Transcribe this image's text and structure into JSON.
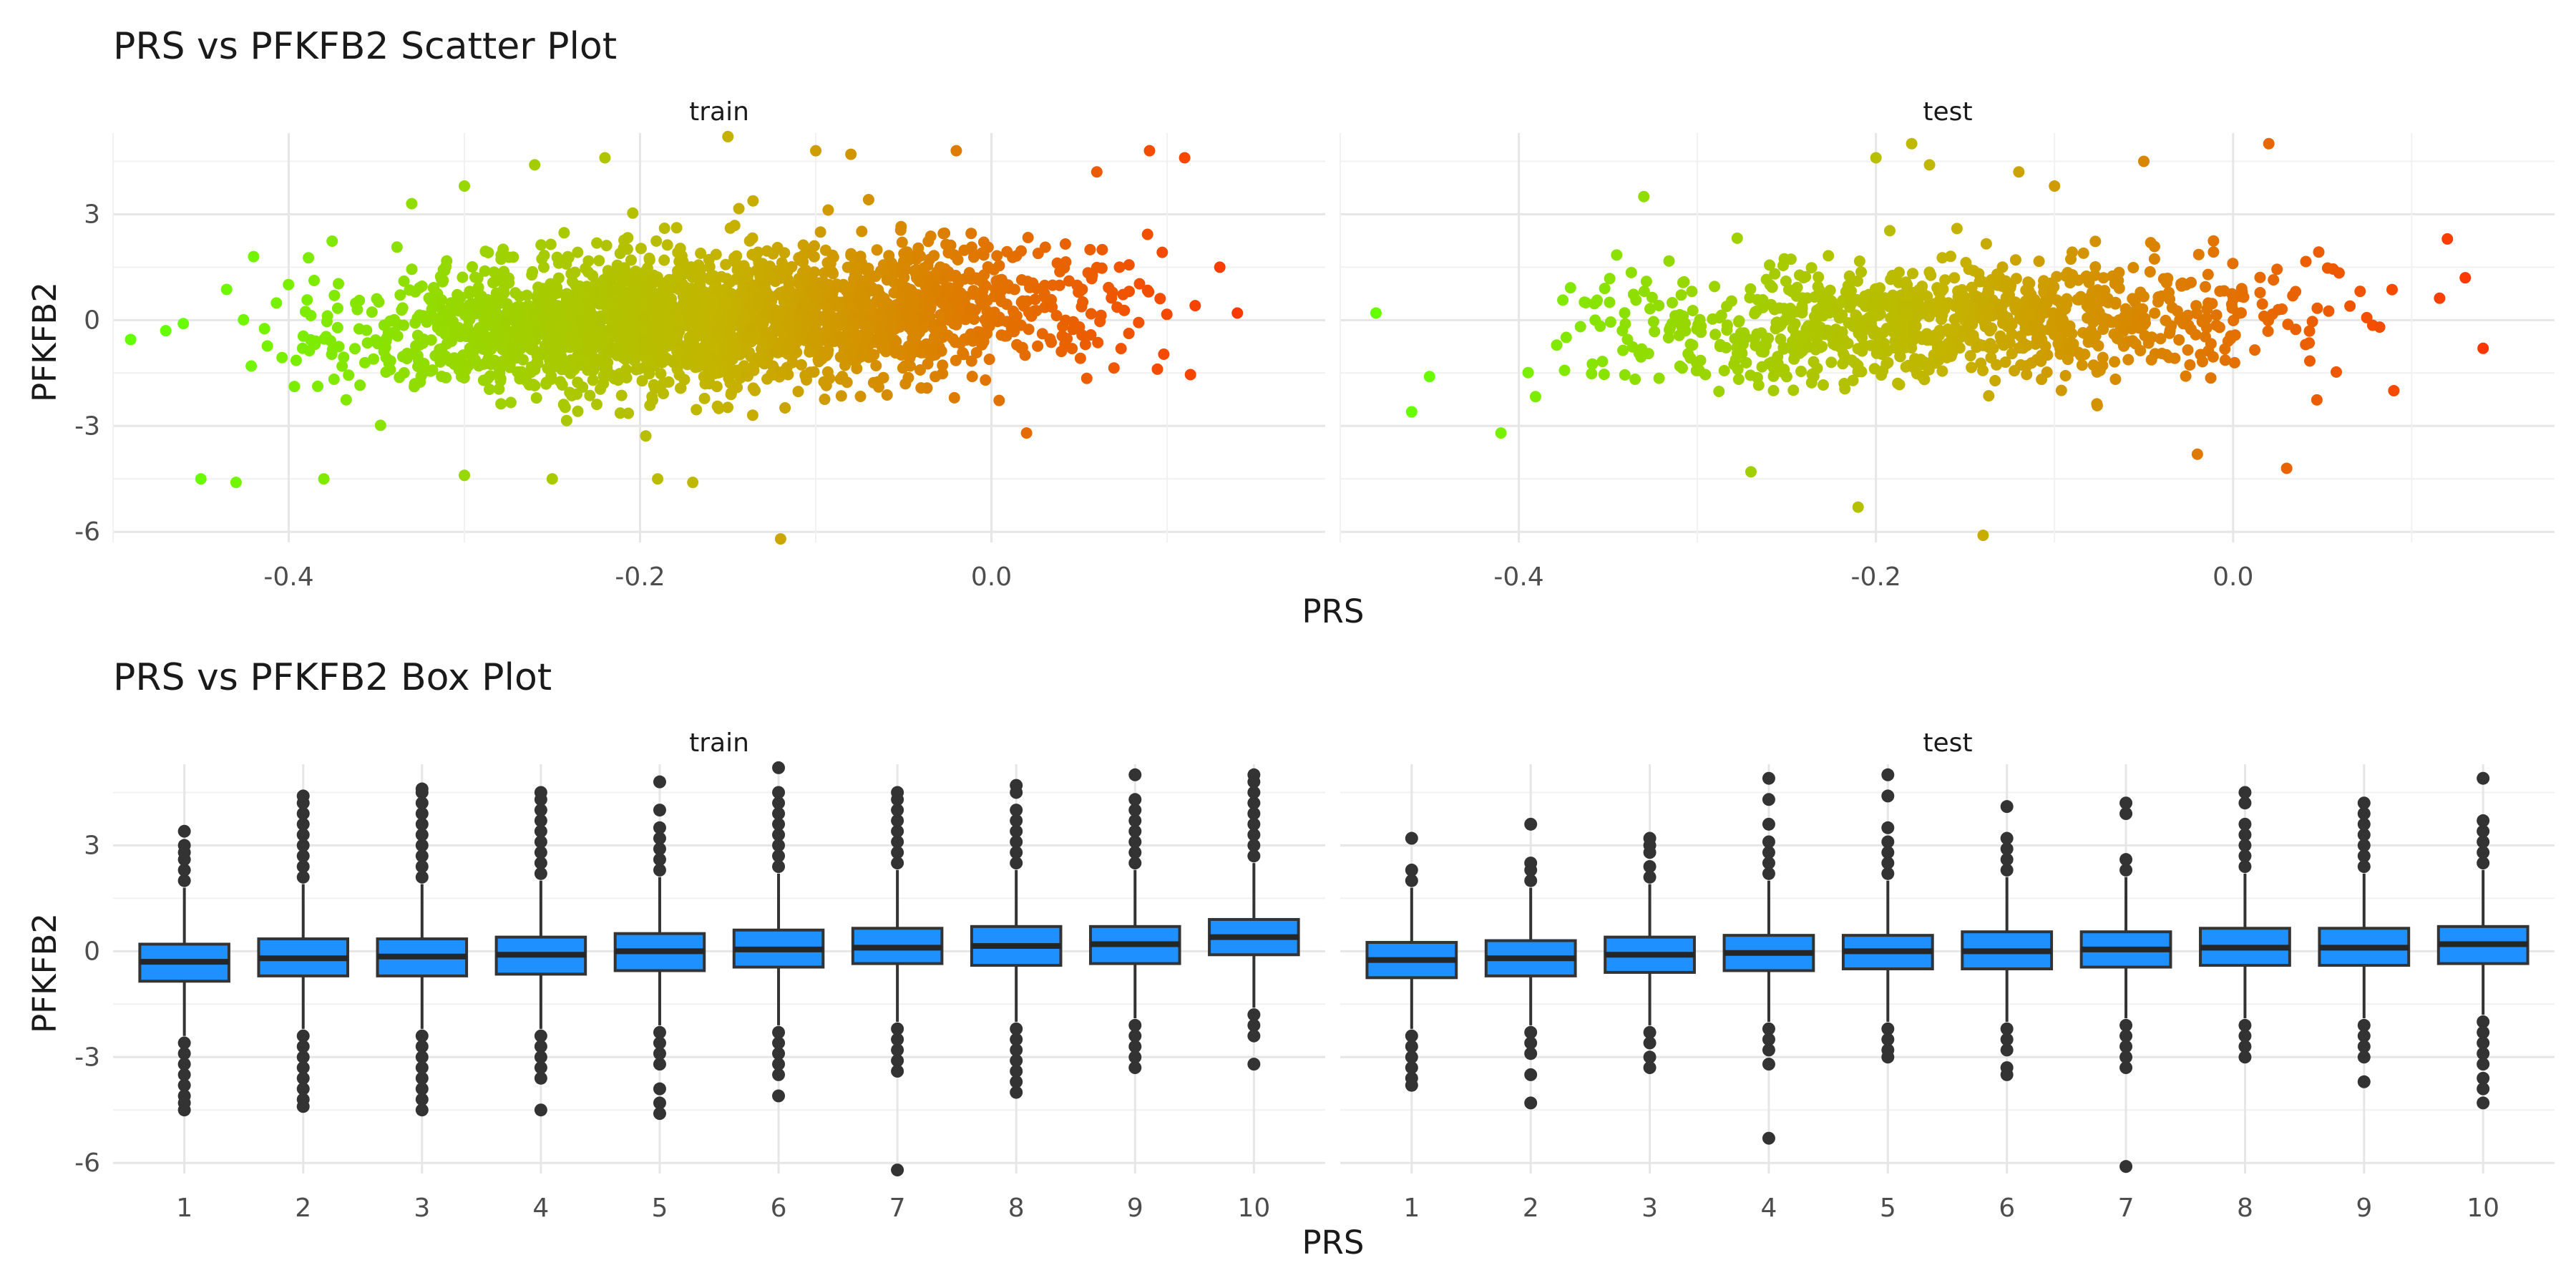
{
  "chart_data": [
    {
      "type": "scatter",
      "title": "PRS vs PFKFB2 Scatter Plot",
      "xlabel": "PRS",
      "ylabel": "PFKFB2",
      "facets": [
        "train",
        "test"
      ],
      "xlim": [
        -0.5,
        0.18
      ],
      "ylim": [
        -6.3,
        5.3
      ],
      "x_ticks": [
        -0.4,
        -0.2,
        0.0
      ],
      "y_ticks": [
        -6,
        -3,
        0,
        3
      ],
      "grid": true,
      "legend": "none",
      "color_gradient": {
        "low": "#66ff00",
        "mid": "#c4b400",
        "high": "#ff3300"
      },
      "series": [
        {
          "facet": "train",
          "n_points_approx": 20000,
          "x_range": [
            -0.49,
            0.15
          ],
          "y_center_line": {
            "x": [
              -0.45,
              0.1
            ],
            "y": [
              -0.5,
              0.5
            ]
          },
          "y_sd": 0.95,
          "outliers": [
            {
              "x": -0.49,
              "y": -0.55
            },
            {
              "x": -0.47,
              "y": -0.3
            },
            {
              "x": -0.46,
              "y": -0.1
            },
            {
              "x": -0.45,
              "y": -4.5
            },
            {
              "x": -0.43,
              "y": -4.6
            },
            {
              "x": -0.42,
              "y": 1.8
            },
            {
              "x": -0.38,
              "y": -4.5
            },
            {
              "x": -0.33,
              "y": 3.3
            },
            {
              "x": -0.3,
              "y": 3.8
            },
            {
              "x": -0.3,
              "y": -4.4
            },
            {
              "x": -0.26,
              "y": 4.4
            },
            {
              "x": -0.25,
              "y": -4.5
            },
            {
              "x": -0.22,
              "y": 4.6
            },
            {
              "x": -0.19,
              "y": -4.5
            },
            {
              "x": -0.17,
              "y": -4.6
            },
            {
              "x": -0.15,
              "y": 5.2
            },
            {
              "x": -0.12,
              "y": -6.2
            },
            {
              "x": -0.1,
              "y": 4.8
            },
            {
              "x": -0.08,
              "y": 4.7
            },
            {
              "x": -0.02,
              "y": 4.8
            },
            {
              "x": 0.02,
              "y": -3.2
            },
            {
              "x": 0.06,
              "y": 4.2
            },
            {
              "x": 0.09,
              "y": 4.8
            },
            {
              "x": 0.11,
              "y": 4.6
            },
            {
              "x": 0.13,
              "y": 1.5
            },
            {
              "x": 0.14,
              "y": 0.2
            }
          ]
        },
        {
          "facet": "test",
          "n_points_approx": 8000,
          "x_range": [
            -0.48,
            0.14
          ],
          "y_center_line": {
            "x": [
              -0.44,
              0.1
            ],
            "y": [
              -0.4,
              0.3
            ]
          },
          "y_sd": 0.85,
          "outliers": [
            {
              "x": -0.48,
              "y": 0.2
            },
            {
              "x": -0.46,
              "y": -2.6
            },
            {
              "x": -0.45,
              "y": -1.6
            },
            {
              "x": -0.41,
              "y": -3.2
            },
            {
              "x": -0.33,
              "y": 3.5
            },
            {
              "x": -0.27,
              "y": -4.3
            },
            {
              "x": -0.21,
              "y": -5.3
            },
            {
              "x": -0.2,
              "y": 4.6
            },
            {
              "x": -0.18,
              "y": 5.0
            },
            {
              "x": -0.17,
              "y": 4.4
            },
            {
              "x": -0.14,
              "y": -6.1
            },
            {
              "x": -0.12,
              "y": 4.2
            },
            {
              "x": -0.1,
              "y": 3.8
            },
            {
              "x": -0.05,
              "y": 4.5
            },
            {
              "x": 0.02,
              "y": 5.0
            },
            {
              "x": -0.02,
              "y": -3.8
            },
            {
              "x": 0.03,
              "y": -4.2
            },
            {
              "x": 0.09,
              "y": -2.0
            },
            {
              "x": 0.12,
              "y": 2.3
            },
            {
              "x": 0.13,
              "y": 1.2
            },
            {
              "x": 0.14,
              "y": -0.8
            }
          ]
        }
      ]
    },
    {
      "type": "box",
      "title": "PRS vs PFKFB2 Box Plot",
      "xlabel": "PRS",
      "ylabel": "PFKFB2",
      "facets": [
        "train",
        "test"
      ],
      "categories": [
        "1",
        "2",
        "3",
        "4",
        "5",
        "6",
        "7",
        "8",
        "9",
        "10"
      ],
      "ylim": [
        -6.3,
        5.3
      ],
      "y_ticks": [
        -6,
        -3,
        0,
        3
      ],
      "grid": true,
      "box_color": "#1e90ff",
      "series": [
        {
          "facet": "train",
          "boxes": [
            {
              "q1": -0.85,
              "median": -0.3,
              "q3": 0.2,
              "whisker_low": -2.4,
              "whisker_high": 1.8,
              "outliers_low": [
                -2.6,
                -2.9,
                -3.2,
                -3.5,
                -3.8,
                -4.1,
                -4.3,
                -4.5
              ],
              "outliers_high": [
                2.0,
                2.3,
                2.6,
                2.8,
                3.0,
                3.4
              ]
            },
            {
              "q1": -0.7,
              "median": -0.2,
              "q3": 0.35,
              "whisker_low": -2.2,
              "whisker_high": 1.9,
              "outliers_low": [
                -2.4,
                -2.7,
                -3.0,
                -3.3,
                -3.6,
                -3.9,
                -4.2,
                -4.4
              ],
              "outliers_high": [
                2.1,
                2.4,
                2.7,
                3.0,
                3.3,
                3.6,
                3.9,
                4.2,
                4.4
              ]
            },
            {
              "q1": -0.7,
              "median": -0.15,
              "q3": 0.35,
              "whisker_low": -2.2,
              "whisker_high": 1.9,
              "outliers_low": [
                -2.4,
                -2.7,
                -3.0,
                -3.3,
                -3.6,
                -3.9,
                -4.2,
                -4.5
              ],
              "outliers_high": [
                2.1,
                2.4,
                2.7,
                3.0,
                3.3,
                3.6,
                3.9,
                4.2,
                4.5,
                4.6
              ]
            },
            {
              "q1": -0.65,
              "median": -0.1,
              "q3": 0.4,
              "whisker_low": -2.2,
              "whisker_high": 2.0,
              "outliers_low": [
                -2.4,
                -2.7,
                -3.0,
                -3.3,
                -3.6,
                -4.5
              ],
              "outliers_high": [
                2.2,
                2.5,
                2.8,
                3.1,
                3.4,
                3.7,
                4.0,
                4.3,
                4.5
              ]
            },
            {
              "q1": -0.55,
              "median": 0.0,
              "q3": 0.5,
              "whisker_low": -2.1,
              "whisker_high": 2.1,
              "outliers_low": [
                -2.3,
                -2.6,
                -2.9,
                -3.2,
                -3.9,
                -4.3,
                -4.6
              ],
              "outliers_high": [
                2.3,
                2.6,
                2.9,
                3.2,
                3.5,
                4.0,
                4.8
              ]
            },
            {
              "q1": -0.45,
              "median": 0.05,
              "q3": 0.6,
              "whisker_low": -2.1,
              "whisker_high": 2.2,
              "outliers_low": [
                -2.3,
                -2.6,
                -2.9,
                -3.2,
                -3.5,
                -4.1
              ],
              "outliers_high": [
                2.4,
                2.7,
                3.0,
                3.3,
                3.6,
                3.9,
                4.2,
                4.5,
                5.2
              ]
            },
            {
              "q1": -0.35,
              "median": 0.1,
              "q3": 0.65,
              "whisker_low": -2.0,
              "whisker_high": 2.3,
              "outliers_low": [
                -2.2,
                -2.5,
                -2.8,
                -3.1,
                -3.4,
                -6.2
              ],
              "outliers_high": [
                2.5,
                2.8,
                3.1,
                3.4,
                3.7,
                4.0,
                4.3,
                4.5
              ]
            },
            {
              "q1": -0.4,
              "median": 0.15,
              "q3": 0.7,
              "whisker_low": -2.0,
              "whisker_high": 2.3,
              "outliers_low": [
                -2.2,
                -2.5,
                -2.8,
                -3.1,
                -3.4,
                -3.7,
                -4.0
              ],
              "outliers_high": [
                2.5,
                2.8,
                3.1,
                3.4,
                3.7,
                4.0,
                4.5,
                4.7
              ]
            },
            {
              "q1": -0.35,
              "median": 0.2,
              "q3": 0.7,
              "whisker_low": -1.9,
              "whisker_high": 2.3,
              "outliers_low": [
                -2.1,
                -2.4,
                -2.7,
                -3.0,
                -3.3
              ],
              "outliers_high": [
                2.5,
                2.8,
                3.1,
                3.4,
                3.7,
                4.0,
                4.3,
                5.0
              ]
            },
            {
              "q1": -0.1,
              "median": 0.4,
              "q3": 0.9,
              "whisker_low": -1.6,
              "whisker_high": 2.5,
              "outliers_low": [
                -1.8,
                -2.1,
                -2.4,
                -3.2
              ],
              "outliers_high": [
                2.7,
                3.0,
                3.3,
                3.6,
                3.9,
                4.2,
                4.5,
                4.8,
                5.0
              ]
            }
          ]
        },
        {
          "facet": "test",
          "boxes": [
            {
              "q1": -0.75,
              "median": -0.25,
              "q3": 0.25,
              "whisker_low": -2.2,
              "whisker_high": 1.8,
              "outliers_low": [
                -2.4,
                -2.7,
                -3.0,
                -3.3,
                -3.6,
                -3.8
              ],
              "outliers_high": [
                2.0,
                2.3,
                3.2
              ]
            },
            {
              "q1": -0.7,
              "median": -0.2,
              "q3": 0.3,
              "whisker_low": -2.1,
              "whisker_high": 1.8,
              "outliers_low": [
                -2.3,
                -2.6,
                -2.9,
                -3.5,
                -4.3
              ],
              "outliers_high": [
                2.0,
                2.3,
                2.5,
                3.6
              ]
            },
            {
              "q1": -0.6,
              "median": -0.1,
              "q3": 0.4,
              "whisker_low": -2.1,
              "whisker_high": 1.9,
              "outliers_low": [
                -2.3,
                -2.6,
                -3.0,
                -3.3
              ],
              "outliers_high": [
                2.1,
                2.4,
                2.8,
                3.0,
                3.2
              ]
            },
            {
              "q1": -0.55,
              "median": -0.05,
              "q3": 0.45,
              "whisker_low": -2.0,
              "whisker_high": 2.0,
              "outliers_low": [
                -2.2,
                -2.5,
                -2.8,
                -3.2,
                -5.3
              ],
              "outliers_high": [
                2.2,
                2.5,
                2.8,
                3.1,
                3.6,
                4.3,
                4.9
              ]
            },
            {
              "q1": -0.5,
              "median": 0.0,
              "q3": 0.45,
              "whisker_low": -2.0,
              "whisker_high": 2.0,
              "outliers_low": [
                -2.2,
                -2.5,
                -2.8,
                -3.0
              ],
              "outliers_high": [
                2.2,
                2.5,
                2.8,
                3.1,
                3.5,
                4.4,
                5.0
              ]
            },
            {
              "q1": -0.5,
              "median": 0.0,
              "q3": 0.55,
              "whisker_low": -2.0,
              "whisker_high": 2.1,
              "outliers_low": [
                -2.2,
                -2.5,
                -2.8,
                -3.3,
                -3.5
              ],
              "outliers_high": [
                2.3,
                2.6,
                2.9,
                3.2,
                4.1
              ]
            },
            {
              "q1": -0.45,
              "median": 0.05,
              "q3": 0.55,
              "whisker_low": -1.9,
              "whisker_high": 2.1,
              "outliers_low": [
                -2.1,
                -2.4,
                -2.7,
                -3.0,
                -3.3,
                -6.1
              ],
              "outliers_high": [
                2.3,
                2.6,
                3.9,
                4.2
              ]
            },
            {
              "q1": -0.4,
              "median": 0.1,
              "q3": 0.65,
              "whisker_low": -1.9,
              "whisker_high": 2.2,
              "outliers_low": [
                -2.1,
                -2.4,
                -2.7,
                -3.0
              ],
              "outliers_high": [
                2.4,
                2.7,
                3.0,
                3.3,
                3.6,
                4.2,
                4.5
              ]
            },
            {
              "q1": -0.4,
              "median": 0.1,
              "q3": 0.65,
              "whisker_low": -1.9,
              "whisker_high": 2.2,
              "outliers_low": [
                -2.1,
                -2.4,
                -2.7,
                -3.0,
                -3.7
              ],
              "outliers_high": [
                2.4,
                2.7,
                3.0,
                3.3,
                3.6,
                3.9,
                4.2
              ]
            },
            {
              "q1": -0.35,
              "median": 0.2,
              "q3": 0.7,
              "whisker_low": -1.8,
              "whisker_high": 2.3,
              "outliers_low": [
                -2.0,
                -2.3,
                -2.6,
                -2.9,
                -3.2,
                -3.6,
                -3.9,
                -4.3
              ],
              "outliers_high": [
                2.5,
                2.8,
                3.1,
                3.4,
                3.7,
                4.9
              ]
            }
          ]
        }
      ]
    }
  ]
}
